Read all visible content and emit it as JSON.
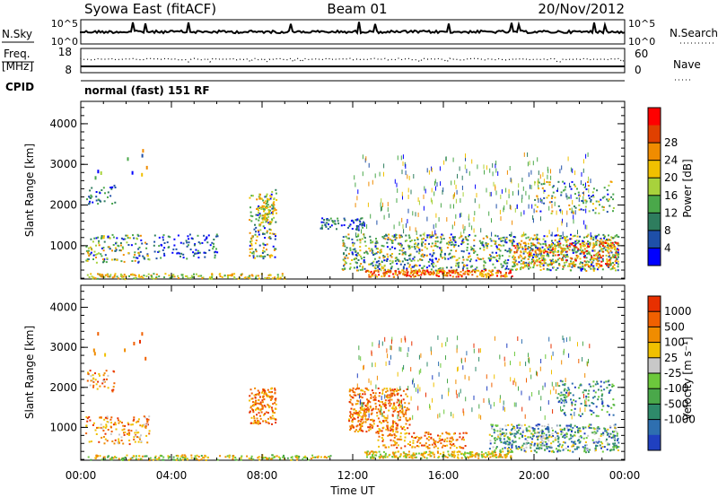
{
  "header": {
    "station": "Syowa East (fitACF)",
    "beam": "Beam 01",
    "date": "20/Nov/2012"
  },
  "noise_panel": {
    "left_label": "N.Sky",
    "right_label": "N.Search",
    "left_ticks": [
      "10^5",
      "10^0"
    ],
    "right_ticks": [
      "10^5",
      "10^0"
    ]
  },
  "freq_panel": {
    "left_label_1": "Freq.",
    "left_label_2": "[MHz]",
    "right_label": "Nave",
    "left_ticks": [
      "18",
      "8"
    ],
    "right_ticks": [
      "60",
      "0"
    ]
  },
  "cpid": {
    "label": "CPID",
    "value": "normal (fast) 151 RF"
  },
  "time_axis": {
    "label": "Time UT",
    "ticks": [
      "00:00",
      "04:00",
      "08:00",
      "12:00",
      "16:00",
      "20:00",
      "00:00"
    ]
  },
  "chart_data": [
    {
      "type": "heatmap",
      "name": "power",
      "ylabel": "Slant Range [km]",
      "yticks": [
        "1000",
        "2000",
        "3000",
        "4000"
      ],
      "ylim": [
        180,
        4550
      ],
      "xlim_hours": [
        0,
        24
      ],
      "colorbar_label": "Power [dB]",
      "colorbar_ticks": [
        "4",
        "8",
        "12",
        "16",
        "20",
        "24",
        "28"
      ],
      "colors": [
        "#0000ff",
        "#1e4fa8",
        "#2e7d5e",
        "#4aa84a",
        "#a8d23c",
        "#f0c000",
        "#f08c00",
        "#e04000",
        "#ff0000"
      ]
    },
    {
      "type": "heatmap",
      "name": "velocity",
      "ylabel": "Slant Range [km]",
      "yticks": [
        "1000",
        "2000",
        "3000",
        "4000"
      ],
      "ylim": [
        180,
        4550
      ],
      "xlim_hours": [
        0,
        24
      ],
      "colorbar_label": "Velocity [m s⁻¹]",
      "colorbar_ticks": [
        "1000",
        "500",
        "100",
        "25",
        "-25",
        "-100",
        "-500",
        "-1000"
      ],
      "colors": [
        "#2040c0",
        "#2e6fb0",
        "#2e8a6a",
        "#4aa84a",
        "#6cc83c",
        "#c8c8c8",
        "#f0c000",
        "#f08c00",
        "#f06000",
        "#e83000"
      ]
    }
  ]
}
